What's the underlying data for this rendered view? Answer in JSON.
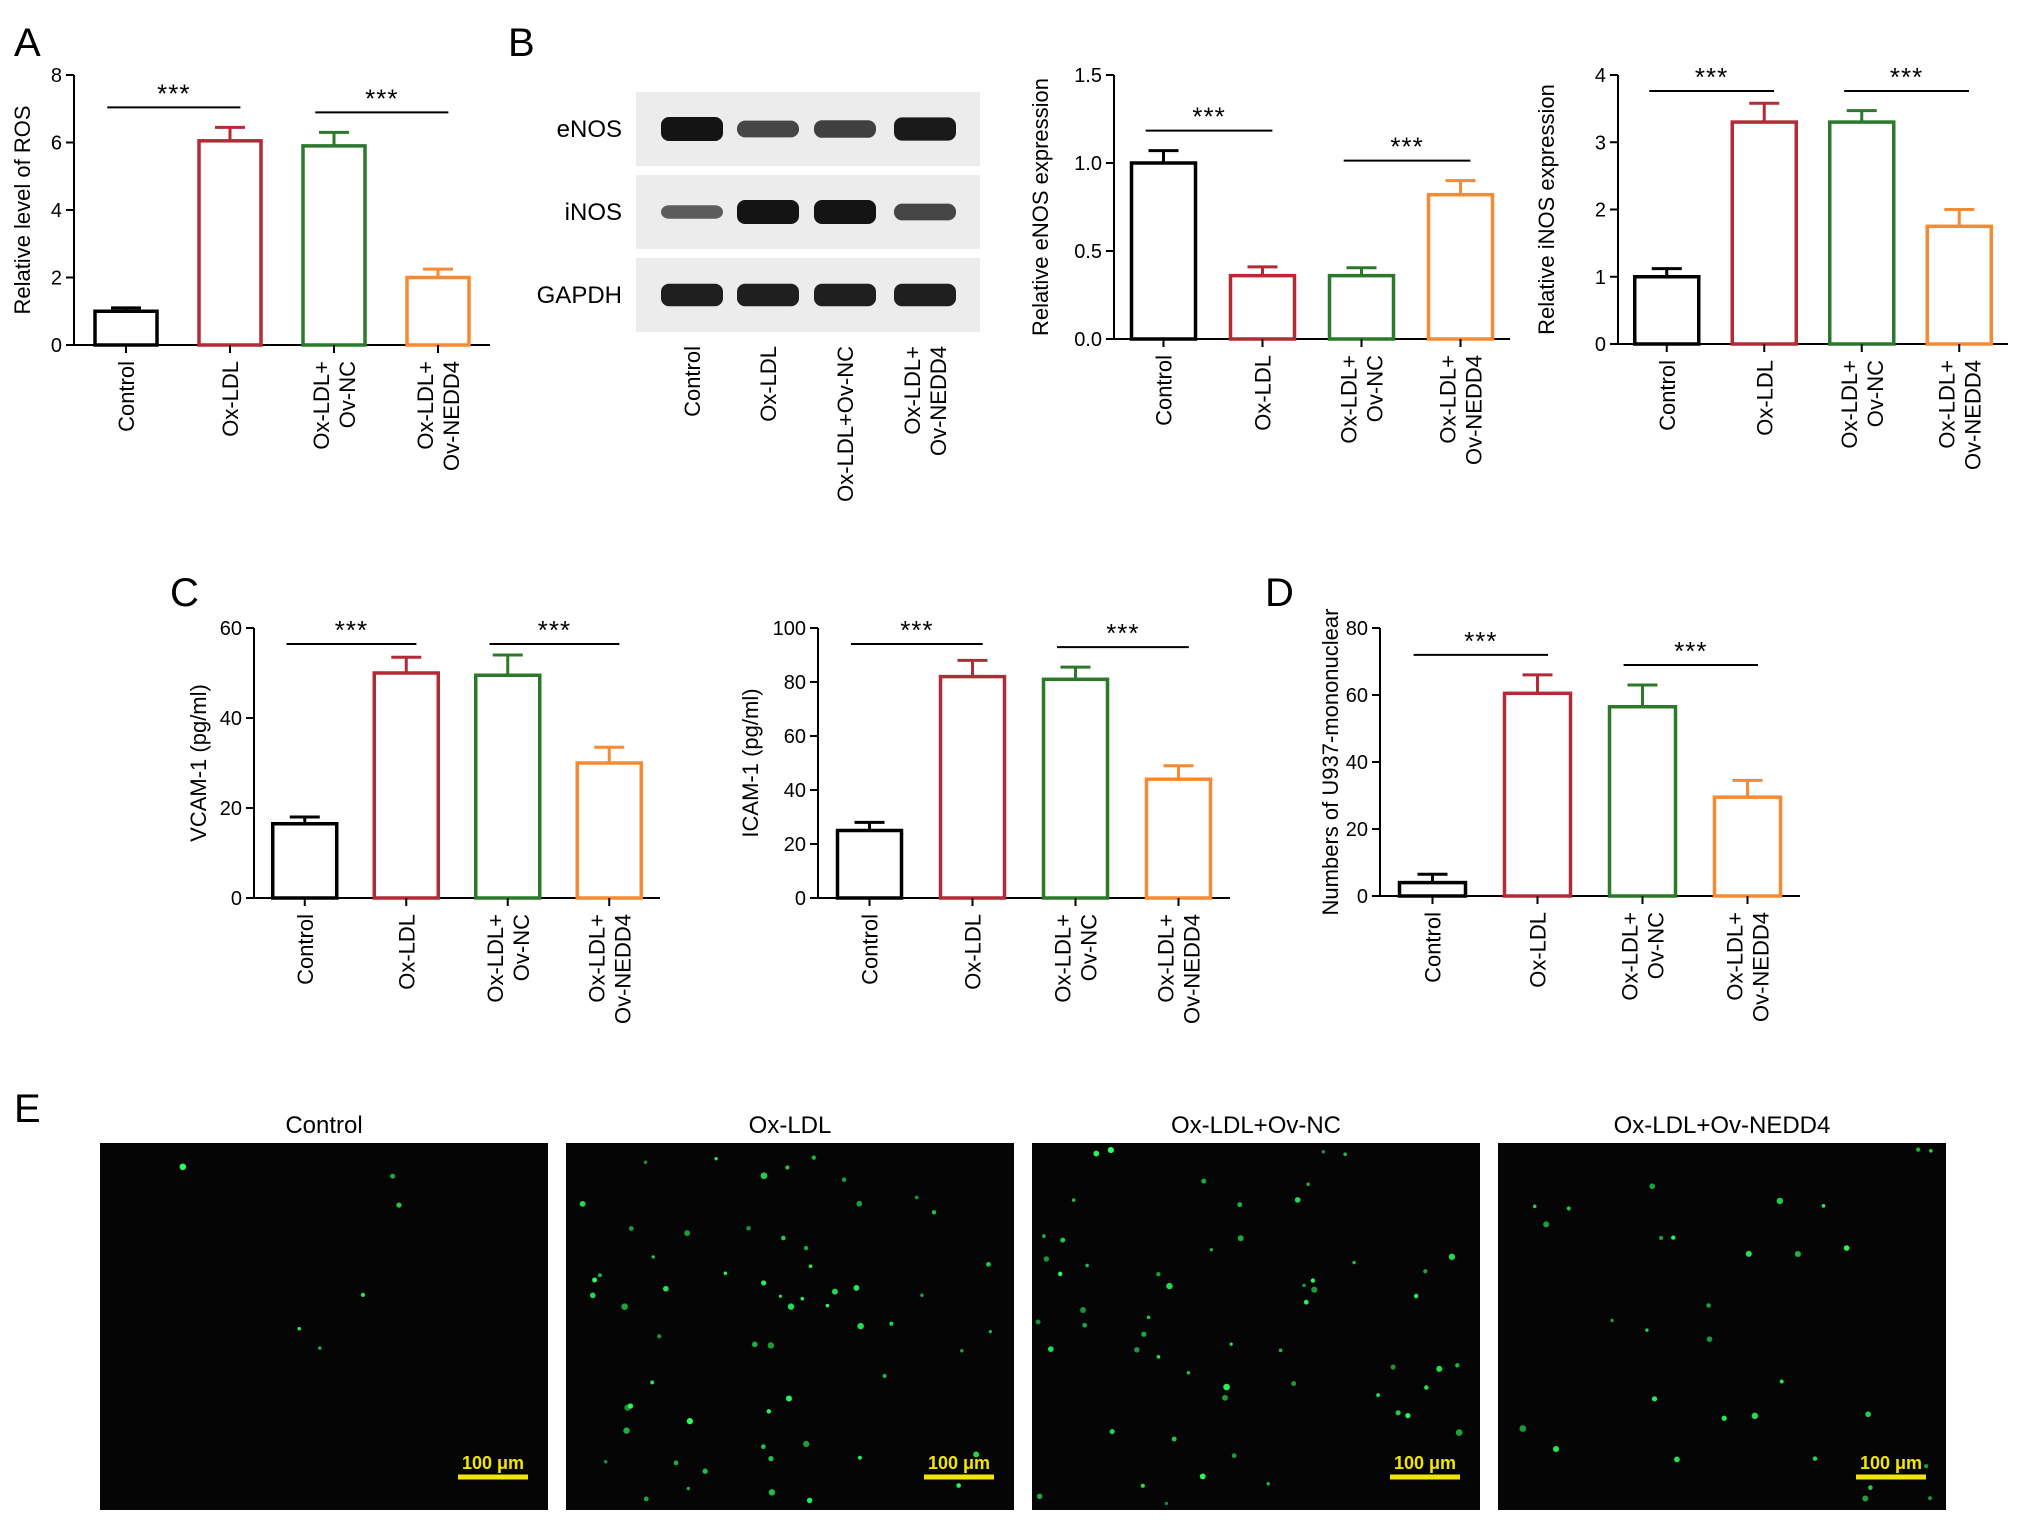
{
  "panels": {
    "A": "A",
    "B": "B",
    "C": "C",
    "D": "D",
    "E": "E"
  },
  "colors": {
    "Control": "#000000",
    "Ox-LDL": "#b22b36",
    "Ox-LDL+Ov-NC": "#2b7a2b",
    "Ox-LDL+Ov-NEDD4": "#f58a32"
  },
  "chart_data": [
    {
      "id": "A",
      "type": "bar",
      "categories": [
        [
          "Control"
        ],
        [
          "Ox-LDL"
        ],
        [
          "Ox-LDL+",
          "Ov-NC"
        ],
        [
          "Ox-LDL+",
          "Ov-NEDD4"
        ]
      ],
      "values": [
        1.0,
        6.05,
        5.9,
        2.0
      ],
      "errors": [
        0.1,
        0.4,
        0.4,
        0.25
      ],
      "ylabel": "Relative level of ROS",
      "ylim": [
        0,
        8
      ],
      "yticks": [
        "0",
        "2",
        "4",
        "6",
        "8"
      ],
      "significance": [
        {
          "from": 0,
          "to": 1,
          "label": "***"
        },
        {
          "from": 2,
          "to": 3,
          "label": "***"
        }
      ]
    },
    {
      "id": "B-eNOS",
      "type": "bar",
      "categories": [
        [
          "Control"
        ],
        [
          "Ox-LDL"
        ],
        [
          "Ox-LDL+",
          "Ov-NC"
        ],
        [
          "Ox-LDL+",
          "Ov-NEDD4"
        ]
      ],
      "values": [
        1.0,
        0.36,
        0.36,
        0.82
      ],
      "errors": [
        0.07,
        0.05,
        0.045,
        0.08
      ],
      "ylabel": "Relative eNOS expression",
      "ylim": [
        0,
        1.5
      ],
      "yticks": [
        "0.0",
        "0.5",
        "1.0",
        "1.5"
      ],
      "significance": [
        {
          "from": 0,
          "to": 1,
          "label": "***"
        },
        {
          "from": 2,
          "to": 3,
          "label": "***"
        }
      ]
    },
    {
      "id": "B-iNOS",
      "type": "bar",
      "categories": [
        [
          "Control"
        ],
        [
          "Ox-LDL"
        ],
        [
          "Ox-LDL+",
          "Ov-NC"
        ],
        [
          "Ox-LDL+",
          "Ov-NEDD4"
        ]
      ],
      "values": [
        1.0,
        3.3,
        3.3,
        1.75
      ],
      "errors": [
        0.12,
        0.28,
        0.17,
        0.25
      ],
      "ylabel": "Relative iNOS expression",
      "ylim": [
        0,
        4
      ],
      "yticks": [
        "0",
        "1",
        "2",
        "3",
        "4"
      ],
      "significance": [
        {
          "from": 0,
          "to": 1,
          "label": "***"
        },
        {
          "from": 2,
          "to": 3,
          "label": "***"
        }
      ]
    },
    {
      "id": "C-VCAM",
      "type": "bar",
      "categories": [
        [
          "Control"
        ],
        [
          "Ox-LDL"
        ],
        [
          "Ox-LDL+",
          "Ov-NC"
        ],
        [
          "Ox-LDL+",
          "Ov-NEDD4"
        ]
      ],
      "values": [
        16.5,
        50.0,
        49.5,
        30.0
      ],
      "errors": [
        1.5,
        3.5,
        4.5,
        3.5
      ],
      "ylabel": "VCAM-1 (pg/ml)",
      "ylim": [
        0,
        60
      ],
      "yticks": [
        "0",
        "20",
        "40",
        "60"
      ],
      "significance": [
        {
          "from": 0,
          "to": 1,
          "label": "***"
        },
        {
          "from": 2,
          "to": 3,
          "label": "***"
        }
      ]
    },
    {
      "id": "C-ICAM",
      "type": "bar",
      "categories": [
        [
          "Control"
        ],
        [
          "Ox-LDL"
        ],
        [
          "Ox-LDL+",
          "Ov-NC"
        ],
        [
          "Ox-LDL+",
          "Ov-NEDD4"
        ]
      ],
      "values": [
        25.0,
        82.0,
        81.0,
        44.0
      ],
      "errors": [
        3.0,
        6.0,
        4.5,
        5.0
      ],
      "ylabel": "ICAM-1 (pg/ml)",
      "ylim": [
        0,
        100
      ],
      "yticks": [
        "0",
        "20",
        "40",
        "60",
        "80",
        "100"
      ],
      "significance": [
        {
          "from": 0,
          "to": 1,
          "label": "***"
        },
        {
          "from": 2,
          "to": 3,
          "label": "***"
        }
      ]
    },
    {
      "id": "D",
      "type": "bar",
      "categories": [
        [
          "Control"
        ],
        [
          "Ox-LDL"
        ],
        [
          "Ox-LDL+",
          "Ov-NC"
        ],
        [
          "Ox-LDL+",
          "Ov-NEDD4"
        ]
      ],
      "values": [
        4.0,
        60.5,
        56.5,
        29.5
      ],
      "errors": [
        2.5,
        5.5,
        6.5,
        5.0
      ],
      "ylabel": "Numbers of U937-mononuclear",
      "ylim": [
        0,
        80
      ],
      "yticks": [
        "0",
        "20",
        "40",
        "60",
        "80"
      ],
      "significance": [
        {
          "from": 0,
          "to": 1,
          "label": "***"
        },
        {
          "from": 2,
          "to": 3,
          "label": "***"
        }
      ]
    }
  ],
  "blot": {
    "rows": [
      "eNOS",
      "iNOS",
      "GAPDH"
    ],
    "lanes": [
      "Control",
      "Ox-LDL",
      "Ox-LDL+Ov-NC",
      "Ox-LDL+Ov-NEDD4"
    ],
    "lane_labels": [
      [
        "Control"
      ],
      [
        "Ox-LDL"
      ],
      [
        "Ox-LDL+Ov-NC"
      ],
      [
        "Ox-LDL+",
        "Ov-NEDD4"
      ]
    ],
    "intensity": [
      [
        1.0,
        0.55,
        0.6,
        0.95
      ],
      [
        0.35,
        1.0,
        1.0,
        0.55
      ],
      [
        0.9,
        0.9,
        0.9,
        0.9
      ]
    ]
  },
  "micrographs": {
    "titles": [
      "Control",
      "Ox-LDL",
      "Ox-LDL+Ov-NC",
      "Ox-LDL+Ov-NEDD4"
    ],
    "scale_bar": "100 μm",
    "cell_counts": [
      6,
      60,
      56,
      30
    ]
  }
}
